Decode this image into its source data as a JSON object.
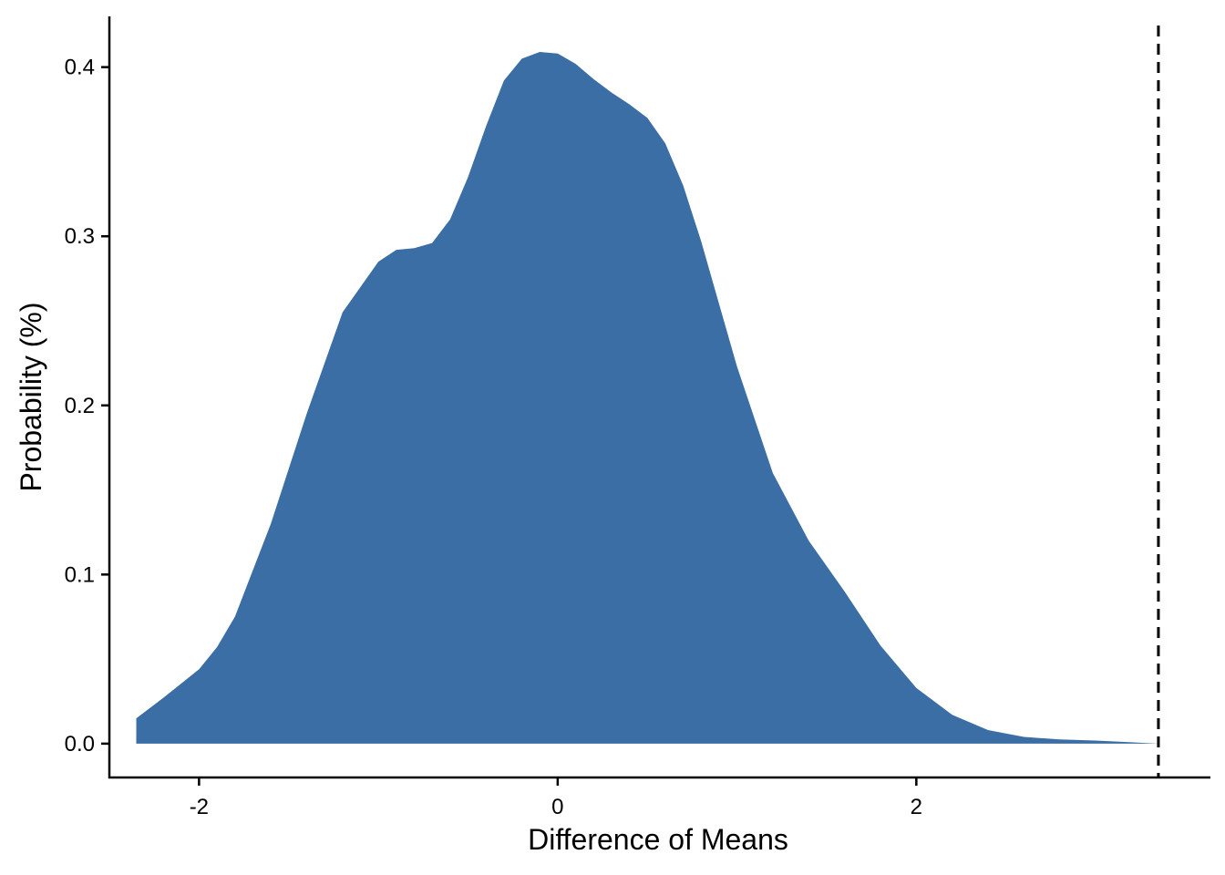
{
  "chart_data": {
    "type": "area",
    "title": "",
    "xlabel": "Difference of Means",
    "ylabel": "Probability (%)",
    "xlim": [
      -2.5,
      3.64
    ],
    "ylim": [
      -0.02,
      0.43
    ],
    "x_ticks": [
      -2,
      0,
      2
    ],
    "x_tick_labels": [
      "-2",
      "0",
      "2"
    ],
    "y_ticks": [
      0.0,
      0.1,
      0.2,
      0.3,
      0.4
    ],
    "y_tick_labels": [
      "0.0",
      "0.1",
      "0.2",
      "0.3",
      "0.4"
    ],
    "grid": false,
    "legend": "none",
    "fill_color": "#3B6EA5",
    "reference_line": {
      "x": 3.35,
      "style": "dashed",
      "color": "#000000"
    },
    "series": [
      {
        "x": [
          -2.35,
          -2.2,
          -2.0,
          -1.9,
          -1.8,
          -1.6,
          -1.4,
          -1.2,
          -1.0,
          -0.9,
          -0.8,
          -0.7,
          -0.6,
          -0.5,
          -0.4,
          -0.3,
          -0.2,
          -0.1,
          0.0,
          0.1,
          0.2,
          0.3,
          0.4,
          0.5,
          0.6,
          0.7,
          0.8,
          0.9,
          1.0,
          1.2,
          1.4,
          1.6,
          1.8,
          2.0,
          2.2,
          2.4,
          2.6,
          2.8,
          3.0,
          3.2,
          3.35
        ],
        "y": [
          0.015,
          0.027,
          0.044,
          0.057,
          0.075,
          0.13,
          0.195,
          0.255,
          0.285,
          0.292,
          0.293,
          0.296,
          0.31,
          0.335,
          0.365,
          0.392,
          0.405,
          0.409,
          0.408,
          0.402,
          0.393,
          0.385,
          0.378,
          0.37,
          0.355,
          0.33,
          0.297,
          0.26,
          0.223,
          0.16,
          0.12,
          0.09,
          0.058,
          0.033,
          0.017,
          0.008,
          0.004,
          0.0025,
          0.0018,
          0.0008,
          0.0
        ]
      }
    ]
  }
}
